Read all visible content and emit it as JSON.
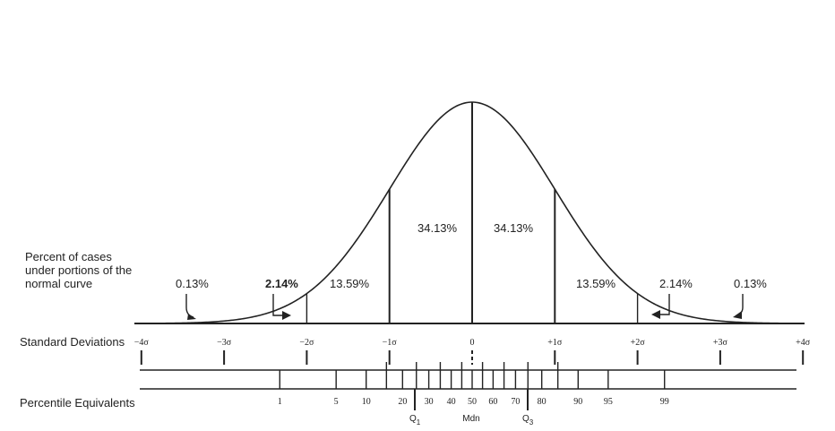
{
  "labels": {
    "cases_line1": "Percent of cases",
    "cases_line2": "under portions of the",
    "cases_line3": "normal curve",
    "std_dev": "Standard Deviations",
    "percentile": "Percentile Equivalents"
  },
  "regions": {
    "tail_left": "0.13%",
    "band2_left": "2.14%",
    "band1_left": "13.59%",
    "center_left": "34.13%",
    "center_right": "34.13%",
    "band1_right": "13.59%",
    "band2_right": "2.14%",
    "tail_right": "0.13%"
  },
  "sigma_ticks": [
    {
      "z": -4,
      "label": "−4σ"
    },
    {
      "z": -3,
      "label": "−3σ"
    },
    {
      "z": -2,
      "label": "−2σ"
    },
    {
      "z": -1,
      "label": "−1σ"
    },
    {
      "z": 0,
      "label": "0"
    },
    {
      "z": 1,
      "label": "+1σ"
    },
    {
      "z": 2,
      "label": "+2σ"
    },
    {
      "z": 3,
      "label": "+3σ"
    },
    {
      "z": 4,
      "label": "+4σ"
    }
  ],
  "percentiles": {
    "ticks": [
      1,
      5,
      10,
      15,
      20,
      25,
      30,
      35,
      40,
      45,
      50,
      55,
      60,
      65,
      70,
      75,
      80,
      85,
      90,
      95,
      99
    ],
    "labeled": [
      1,
      5,
      10,
      20,
      30,
      40,
      50,
      60,
      70,
      80,
      90,
      95,
      99
    ]
  },
  "quartiles": {
    "q1_main": "Q",
    "q1_sub": "1",
    "median": "Mdn",
    "q3_main": "Q",
    "q3_sub": "3"
  }
}
